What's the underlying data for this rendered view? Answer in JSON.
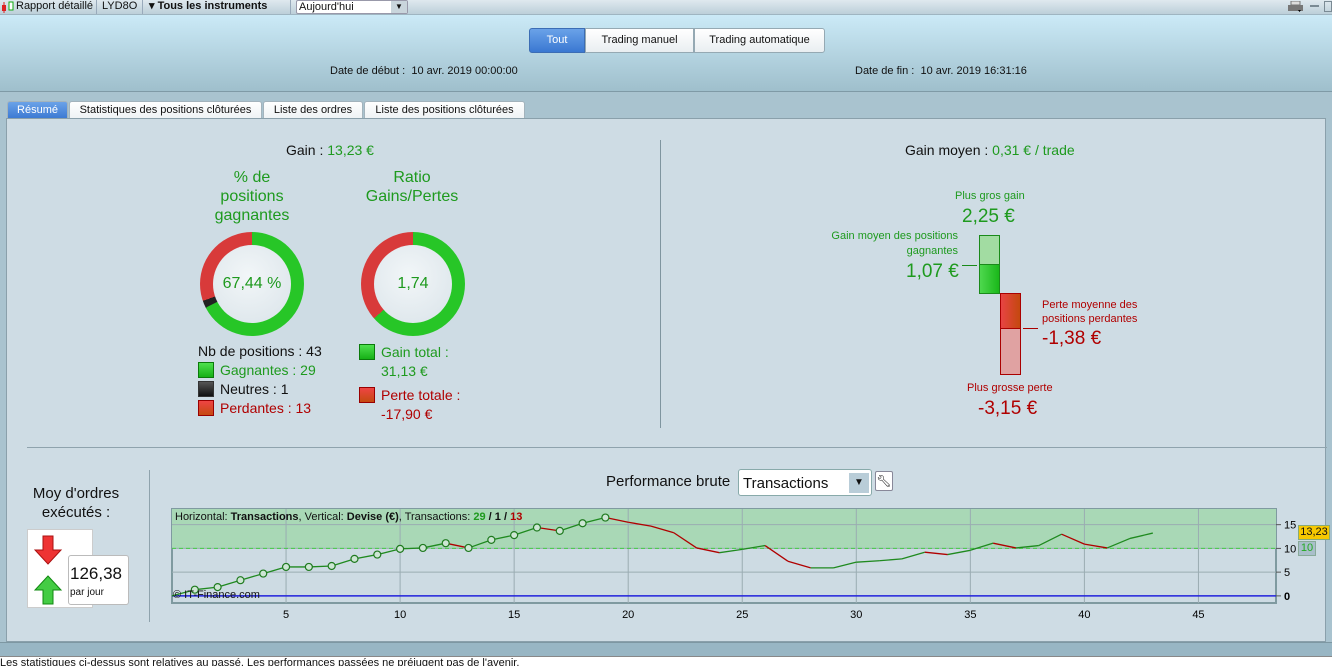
{
  "toolbar": {
    "report_label": "Rapport détaillé",
    "account": "LYD8O",
    "instruments": "Tous les instruments",
    "period": "Aujourd'hui",
    "icons": [
      "candlestick-icon",
      "printer-icon",
      "minimize-icon",
      "restore-icon"
    ]
  },
  "header": {
    "modes": [
      "Tout",
      "Trading manuel",
      "Trading automatique"
    ],
    "active_mode": "Tout",
    "start_label": "Date de début :",
    "start_value": "10 avr. 2019 00:00:00",
    "end_label": "Date de fin :",
    "end_value": "10 avr. 2019 16:31:16"
  },
  "tabs": [
    "Résumé",
    "Statistiques des positions clôturées",
    "Liste des ordres",
    "Liste des positions clôturées"
  ],
  "summary": {
    "gain_label": "Gain :",
    "gain_value": "13,23 €",
    "pct_title_1": "% de",
    "pct_title_2": "positions",
    "pct_title_3": "gagnantes",
    "pct_value": "67,44 %",
    "ratio_title_1": "Ratio",
    "ratio_title_2": "Gains/Pertes",
    "ratio_value": "1,74",
    "nb_positions": "Nb de positions : 43",
    "winners": "Gagnantes : 29",
    "neutral": "Neutres : 1",
    "losers": "Perdantes : 13",
    "winners_count": 29,
    "neutral_count": 1,
    "losers_count": 13,
    "gain_total_label": "Gain total :",
    "gain_total_value": "31,13 €",
    "loss_total_label": "Perte totale :",
    "loss_total_value": "-17,90 €",
    "gain_total_num": 31.13,
    "loss_total_num": 17.9
  },
  "average": {
    "label": "Gain moyen :",
    "value": "0,31 € / trade",
    "best_label": "Plus gros gain",
    "best_value": "2,25 €",
    "avg_win_label_1": "Gain moyen des positions",
    "avg_win_label_2": "gagnantes",
    "avg_win_value": "1,07 €",
    "avg_loss_label_1": "Perte moyenne des",
    "avg_loss_label_2": "positions perdantes",
    "avg_loss_value": "-1,38 €",
    "worst_label": "Plus grosse perte",
    "worst_value": "-3,15 €"
  },
  "orders": {
    "title_1": "Moy d'ordres",
    "title_2": "exécutés :",
    "value": "126,38",
    "unit": "par jour"
  },
  "performance": {
    "title": "Performance brute",
    "select_value": "Transactions",
    "copyright": "© IT-Finance.com",
    "info": {
      "h_label": "Horizontal: ",
      "h_value": "Transactions",
      "v_label": ", Vertical: ",
      "v_value": "Devise (€)",
      "t_label": ", Transactions: ",
      "wins": "29",
      "sep1": " / ",
      "neutral": "1",
      "sep2": " / ",
      "losses": "13"
    },
    "last_badge": "13,23",
    "ref_badge": "10"
  },
  "chart_data": {
    "type": "line",
    "xlabel": "",
    "ylabel": "",
    "xlim": [
      0,
      48.4
    ],
    "ylim": [
      -1.5,
      18.3
    ],
    "x_ticks": [
      5,
      10,
      15,
      20,
      25,
      30,
      35,
      40,
      45
    ],
    "y_ticks": [
      0,
      5,
      10,
      15
    ],
    "grid": true,
    "reference_line": 10,
    "markers_until_x": 19,
    "colors": {
      "up": "#1f8a1f",
      "down": "#b00000",
      "zero": "#2222dd",
      "zone": "#a9d8b6"
    },
    "x": [
      0,
      1,
      2,
      3,
      4,
      5,
      6,
      7,
      8,
      9,
      10,
      11,
      12,
      13,
      14,
      15,
      16,
      17,
      18,
      19,
      20,
      21,
      22,
      23,
      24,
      25,
      26,
      27,
      28,
      29,
      30,
      31,
      32,
      33,
      34,
      35,
      36,
      37,
      38,
      39,
      40,
      41,
      42,
      43
    ],
    "y": [
      0,
      1.3,
      1.85,
      3.3,
      4.7,
      6.1,
      6.1,
      6.3,
      7.8,
      8.7,
      9.9,
      10.1,
      11.1,
      10.1,
      11.8,
      12.8,
      14.4,
      13.7,
      15.3,
      16.5,
      15.5,
      14.7,
      13.3,
      10.1,
      9.1,
      9.8,
      10.6,
      7.3,
      5.9,
      5.9,
      7.1,
      7.4,
      7.8,
      9.2,
      8.7,
      9.6,
      11.1,
      10.1,
      10.6,
      13.0,
      10.9,
      10.1,
      12.1,
      13.23
    ]
  },
  "status_text": "Les statistiques ci-dessus sont relatives au passé. Les performances passées ne préjugent pas de l'avenir."
}
